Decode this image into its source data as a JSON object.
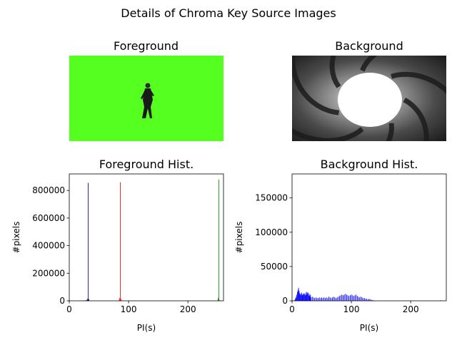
{
  "figure": {
    "title": "Details of Chroma Key Source Images"
  },
  "panels": {
    "foreground": {
      "title": "Foreground",
      "icon": "green-screen-person-image",
      "bg_color": "#55ff1f"
    },
    "background": {
      "title": "Background",
      "icon": "gun-barrel-spiral-image"
    }
  },
  "colors": {
    "red": "#ff0000",
    "green": "#008000",
    "blue": "#0000ff",
    "navy": "#000080"
  },
  "chart_data": [
    {
      "type": "bar",
      "title": "Foreground Hist.",
      "xlabel": "PI(s)",
      "ylabel": "#pixels",
      "xlim": [
        0,
        260
      ],
      "ylim": [
        0,
        920000
      ],
      "xticks": [
        0,
        100,
        200
      ],
      "yticks": [
        0,
        200000,
        400000,
        600000,
        800000
      ],
      "series": [
        {
          "color": "#000080",
          "x": [
            20,
            24,
            28,
            30,
            31,
            32,
            33
          ],
          "values": [
            2000,
            3000,
            5000,
            8000,
            15000,
            855000,
            12000
          ]
        },
        {
          "color": "#ff0000",
          "x": [
            84,
            85,
            86,
            87,
            88
          ],
          "values": [
            5000,
            20000,
            860000,
            15000,
            4000
          ]
        },
        {
          "color": "#008000",
          "x": [
            250,
            251,
            252,
            253
          ],
          "values": [
            4000,
            20000,
            880000,
            6000
          ]
        }
      ]
    },
    {
      "type": "bar",
      "title": "Background Hist.",
      "xlabel": "PI(s)",
      "ylabel": "#pixels",
      "xlim": [
        0,
        260
      ],
      "ylim": [
        0,
        185000
      ],
      "xticks": [
        0,
        100,
        200
      ],
      "yticks": [
        0,
        50000,
        100000,
        150000
      ],
      "series": [
        {
          "color": "#0000ff",
          "x": [
            5,
            6,
            7,
            8,
            9,
            10,
            11,
            12,
            13,
            14,
            15,
            16,
            17,
            18,
            19,
            20,
            21,
            22,
            23,
            24,
            25,
            26,
            27,
            28,
            29,
            30,
            31,
            32,
            34,
            36,
            38,
            40,
            42,
            44,
            46,
            48,
            50,
            52,
            54,
            56,
            58,
            60,
            62,
            64,
            66,
            68,
            70,
            72,
            74,
            76,
            78,
            80,
            82,
            84,
            86,
            88,
            90,
            92,
            94,
            96,
            98,
            100,
            102,
            104,
            106,
            108,
            110,
            112,
            114,
            116,
            118,
            120,
            122,
            124,
            126,
            128,
            130,
            132,
            134,
            136,
            250
          ],
          "values": [
            2000,
            4000,
            6000,
            9000,
            13000,
            16000,
            19000,
            14000,
            11000,
            9000,
            10000,
            12000,
            8000,
            10000,
            9000,
            11000,
            10000,
            8000,
            12000,
            9000,
            13000,
            11000,
            12000,
            8000,
            10000,
            7000,
            9000,
            5000,
            6000,
            5000,
            4000,
            5000,
            4000,
            4000,
            5000,
            4000,
            5000,
            4000,
            5000,
            4000,
            5000,
            4000,
            6000,
            5000,
            4000,
            5000,
            6000,
            5000,
            4000,
            5000,
            6000,
            7000,
            8000,
            9000,
            8000,
            9000,
            10000,
            9000,
            8000,
            7000,
            8000,
            9000,
            8000,
            7000,
            8000,
            9000,
            7000,
            6000,
            5000,
            6000,
            5000,
            4000,
            4000,
            3000,
            3000,
            2000,
            3000,
            2000,
            1500,
            1000,
            800
          ]
        }
      ]
    }
  ]
}
